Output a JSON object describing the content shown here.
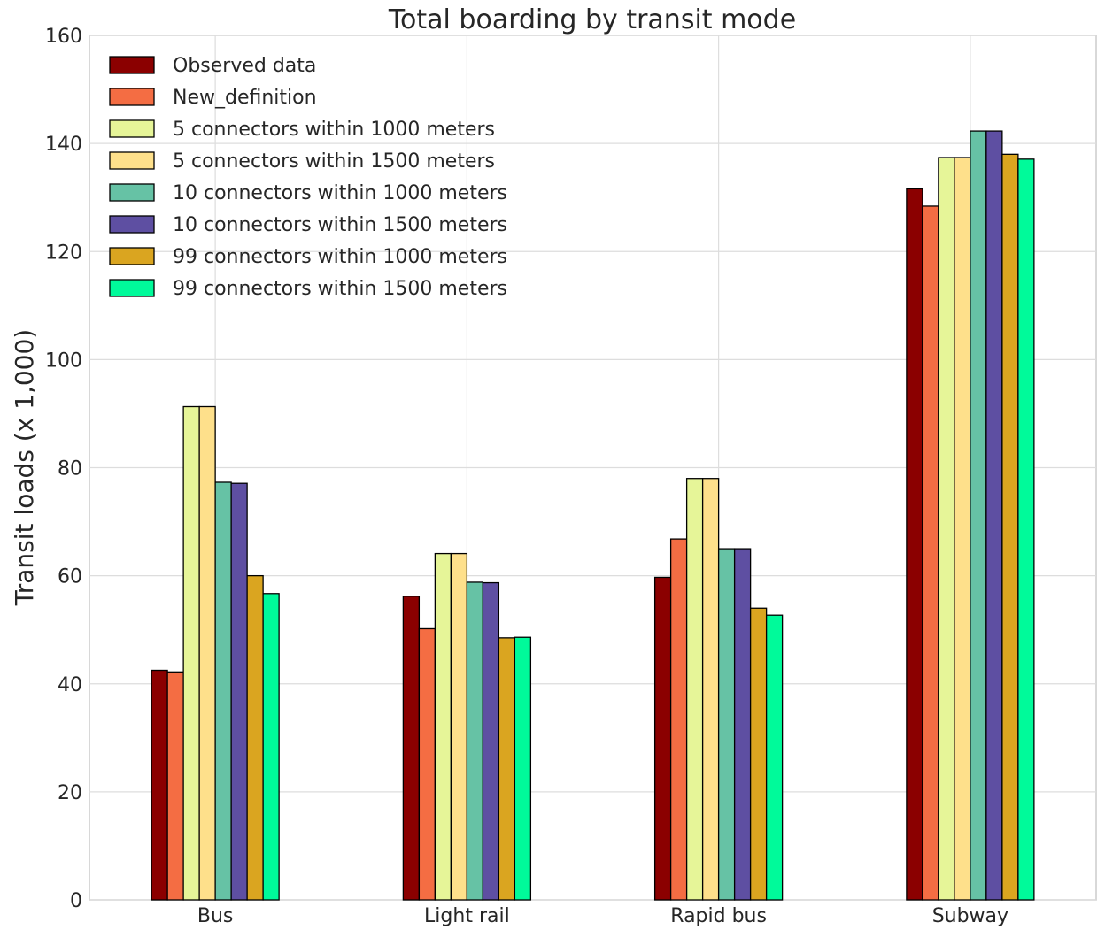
{
  "chart_data": {
    "type": "bar",
    "title": "Total boarding by transit mode",
    "xlabel": "",
    "ylabel": "Transit loads (x 1,000)",
    "ylim": [
      0,
      160
    ],
    "yticks": [
      0,
      20,
      40,
      60,
      80,
      100,
      120,
      140,
      160
    ],
    "grid": true,
    "legend_position": "top-left",
    "categories": [
      "Bus",
      "Light rail",
      "Rapid bus",
      "Subway"
    ],
    "series": [
      {
        "name": "Observed data",
        "color": "#8b0000",
        "values": [
          42.5,
          56.2,
          59.7,
          131.6
        ]
      },
      {
        "name": "New_definition",
        "color": "#f46d43",
        "values": [
          42.2,
          50.2,
          66.8,
          128.4
        ]
      },
      {
        "name": "5 connectors within 1000 meters",
        "color": "#e6f598",
        "values": [
          91.3,
          64.1,
          78.0,
          137.4
        ]
      },
      {
        "name": "5 connectors within 1500 meters",
        "color": "#fee08b",
        "values": [
          91.3,
          64.1,
          78.0,
          137.4
        ]
      },
      {
        "name": "10 connectors within 1000 meters",
        "color": "#66c2a5",
        "values": [
          77.3,
          58.8,
          65.0,
          142.3
        ]
      },
      {
        "name": "10 connectors within 1500 meters",
        "color": "#5e4fa2",
        "values": [
          77.1,
          58.7,
          65.0,
          142.3
        ]
      },
      {
        "name": "99 connectors within 1000 meters",
        "color": "#daa520",
        "values": [
          60.0,
          48.5,
          54.0,
          138.0
        ]
      },
      {
        "name": "99 connectors within 1500 meters",
        "color": "#00fa9a",
        "values": [
          56.7,
          48.6,
          52.7,
          137.1
        ]
      }
    ]
  }
}
